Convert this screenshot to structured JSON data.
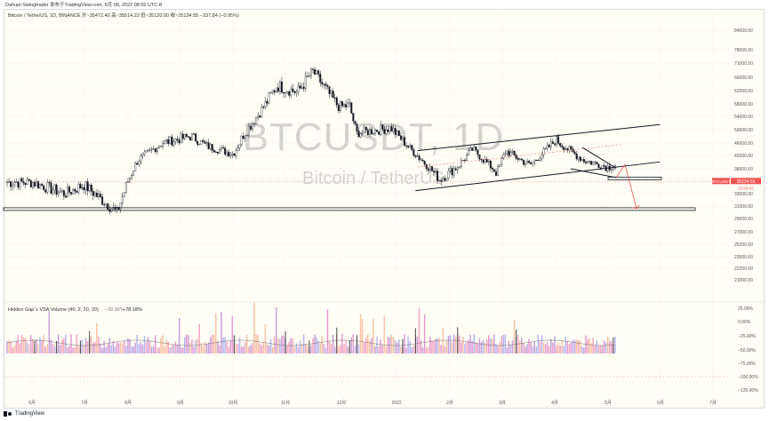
{
  "header": {
    "publisher": "Dahupi-Swingtrader 发布于TradingView.com, 5月 08, 2022 08:55 UTC-8",
    "symbol_line": "Bitcoin / TetherUS, 1D, BINANCE  开~35472.40  高~35514.22  低~35120.00  收~35134.55  −337.84 (−0.95%)"
  },
  "watermark": {
    "symbol": "BTCUSDT, 1D",
    "name": "Bitcoin / TetherUS"
  },
  "footer": {
    "brand": "TradingView"
  },
  "price_tag": {
    "symbol": "BTCUSDT",
    "price": "35134.55",
    "countdown": "15:04:02",
    "color": "#ef5350"
  },
  "volume_label": {
    "title": "Hidden Gap`s VSA Volume (40, 2, 20, 20)",
    "value1": "−98.86%",
    "value2": "−78.18%"
  },
  "chart_data": {
    "type": "candlestick",
    "price_scale": "log",
    "y_ticks": [
      "84000.00",
      "78000.00",
      "71000.00",
      "66000.00",
      "62000.00",
      "58000.00",
      "54000.00",
      "50000.00",
      "46000.00",
      "42000.00",
      "38000.00",
      "35000.00",
      "33000.00",
      "31000.00",
      "29000.00",
      "27000.00",
      "25250.00",
      "23500.00",
      "22250.00",
      "21000.00"
    ],
    "volume_y_ticks": [
      "25.00%",
      "0.00%",
      "−25.00%",
      "−50.00%",
      "−75.00%",
      "−100.00%",
      "−125.00%"
    ],
    "x_ticks": [
      "6月",
      "7月",
      "8月",
      "9月",
      "10月",
      "11月",
      "12月",
      "2022",
      "2月",
      "3月",
      "4月",
      "5月",
      "6月",
      "7月"
    ],
    "monthly_path": [
      {
        "month": "2021-06",
        "price": 35000
      },
      {
        "month": "2021-06-20",
        "price": 33000
      },
      {
        "month": "2021-07",
        "price": 34500
      },
      {
        "month": "2021-07-20",
        "price": 30000
      },
      {
        "month": "2021-08",
        "price": 40500
      },
      {
        "month": "2021-08-15",
        "price": 46000
      },
      {
        "month": "2021-09",
        "price": 48000
      },
      {
        "month": "2021-09-10",
        "price": 45000
      },
      {
        "month": "2021-09-25",
        "price": 42500
      },
      {
        "month": "2021-10",
        "price": 48500
      },
      {
        "month": "2021-10-20",
        "price": 63500
      },
      {
        "month": "2021-11",
        "price": 61500
      },
      {
        "month": "2021-11-10",
        "price": 68000
      },
      {
        "month": "2021-11-25",
        "price": 57000
      },
      {
        "month": "2021-12",
        "price": 57500
      },
      {
        "month": "2021-12-05",
        "price": 49000
      },
      {
        "month": "2021-12-25",
        "price": 50500
      },
      {
        "month": "2022-01",
        "price": 46500
      },
      {
        "month": "2022-01-22",
        "price": 35500
      },
      {
        "month": "2022-02",
        "price": 38500
      },
      {
        "month": "2022-02-10",
        "price": 44000
      },
      {
        "month": "2022-02-24",
        "price": 37000
      },
      {
        "month": "2022-03",
        "price": 43500
      },
      {
        "month": "2022-03-15",
        "price": 39000
      },
      {
        "month": "2022-03-30",
        "price": 47000
      },
      {
        "month": "2022-04",
        "price": 46000
      },
      {
        "month": "2022-04-15",
        "price": 40500
      },
      {
        "month": "2022-04-29",
        "price": 38500
      },
      {
        "month": "2022-05-05",
        "price": 39500
      },
      {
        "month": "2022-05-08",
        "price": 35134.55
      }
    ],
    "support_line": {
      "price": 30500
    },
    "support_box": {
      "price": 35800
    },
    "channel": {
      "upper": [
        {
          "date": "2022-01-05",
          "price": 43500
        },
        {
          "date": "2022-05-30",
          "price": 51500
        }
      ],
      "lower": [
        {
          "date": "2022-01-05",
          "price": 33500
        },
        {
          "date": "2022-05-30",
          "price": 40000
        }
      ]
    },
    "projection": {
      "color": "#ef5350",
      "target_price": 30600
    }
  }
}
